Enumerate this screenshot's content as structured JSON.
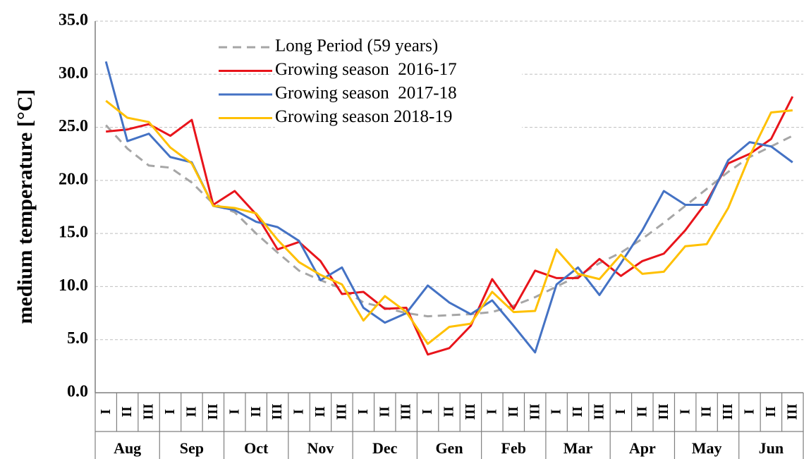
{
  "chart_data": {
    "type": "line",
    "y_label": "medium temperature [°C]",
    "categories": [
      "I",
      "II",
      "III",
      "I",
      "II",
      "III",
      "I",
      "II",
      "III",
      "I",
      "II",
      "III",
      "I",
      "II",
      "III",
      "I",
      "II",
      "III",
      "I",
      "II",
      "III",
      "I",
      "II",
      "III",
      "I",
      "II",
      "III",
      "I",
      "II",
      "III",
      "I",
      "II",
      "III"
    ],
    "category_groups": [
      "Aug",
      "Sep",
      "Oct",
      "Nov",
      "Dec",
      "Gen",
      "Feb",
      "Mar",
      "Apr",
      "May",
      "Jun"
    ],
    "ylim": [
      0,
      35
    ],
    "yticks": [
      {
        "value": 0,
        "label": "0.0"
      },
      {
        "value": 5,
        "label": "5.0"
      },
      {
        "value": 10,
        "label": "10.0"
      },
      {
        "value": 15,
        "label": "15.0"
      },
      {
        "value": 20,
        "label": "20.0"
      },
      {
        "value": 25,
        "label": "25.0"
      },
      {
        "value": 30,
        "label": "30.0"
      },
      {
        "value": 35,
        "label": "35.0"
      }
    ],
    "grid": true,
    "legend": "upper left",
    "series": [
      {
        "name": "Long Period (59 years)",
        "color": "#a6a6a6",
        "line_style": "dashed",
        "values": [
          25.2,
          23.0,
          21.4,
          21.2,
          19.8,
          17.8,
          17.0,
          15.0,
          13.2,
          11.5,
          10.6,
          9.8,
          8.5,
          8.0,
          7.5,
          7.2,
          7.3,
          7.4,
          7.6,
          8.2,
          9.0,
          10.0,
          11.0,
          12.2,
          13.2,
          14.5,
          16.0,
          17.6,
          19.2,
          20.8,
          22.2,
          23.2,
          24.2
        ]
      },
      {
        "name": "Growing season  2016-17",
        "color": "#e8141b",
        "line_style": "solid",
        "values": [
          24.6,
          24.8,
          25.3,
          24.2,
          25.7,
          17.7,
          19.0,
          16.8,
          13.5,
          14.2,
          12.4,
          9.3,
          9.5,
          7.9,
          8.0,
          3.6,
          4.2,
          6.3,
          10.7,
          7.9,
          11.5,
          10.8,
          10.8,
          12.6,
          11.0,
          12.4,
          13.1,
          15.3,
          18.0,
          21.6,
          22.5,
          23.9,
          27.9
        ]
      },
      {
        "name": "Growing season  2017-18",
        "color": "#4472c4",
        "line_style": "solid",
        "values": [
          31.2,
          23.7,
          24.4,
          22.2,
          21.7,
          17.6,
          17.2,
          16.1,
          15.6,
          14.3,
          10.6,
          11.8,
          8.0,
          6.6,
          7.5,
          10.1,
          8.5,
          7.4,
          8.7,
          6.3,
          3.8,
          10.2,
          11.8,
          9.2,
          12.2,
          15.3,
          19.0,
          17.7,
          17.7,
          21.9,
          23.6,
          23.2,
          21.7
        ]
      },
      {
        "name": "Growing season 2018-19",
        "color": "#ffc000",
        "line_style": "solid",
        "values": [
          27.5,
          25.9,
          25.5,
          23.1,
          21.6,
          17.6,
          17.4,
          16.9,
          14.4,
          12.3,
          11.1,
          10.2,
          6.8,
          9.1,
          7.6,
          4.6,
          6.2,
          6.5,
          9.5,
          7.6,
          7.7,
          13.5,
          11.2,
          10.7,
          13.0,
          11.2,
          11.4,
          13.8,
          14.0,
          17.4,
          22.3,
          26.4,
          26.6
        ]
      }
    ]
  }
}
